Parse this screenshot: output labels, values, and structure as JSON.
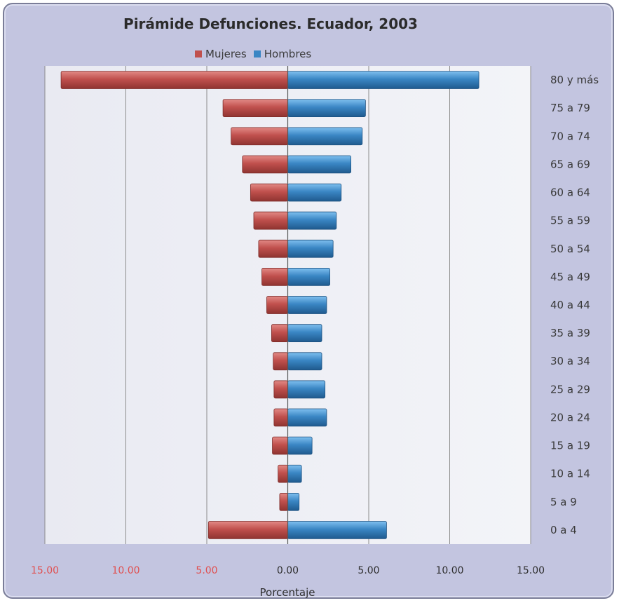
{
  "chart_data": {
    "type": "bar",
    "orientation": "horizontal",
    "title": "Pirámide Defunciones. Ecuador, 2003",
    "xlabel": "Porcentaje",
    "ylabel": "",
    "xlim": [
      -15,
      15
    ],
    "x_ticks": [
      {
        "value": -15,
        "label": "15.00",
        "color": "#e05050"
      },
      {
        "value": -10,
        "label": "10.00",
        "color": "#e05050"
      },
      {
        "value": -5,
        "label": "5.00",
        "color": "#e05050"
      },
      {
        "value": 0,
        "label": "0.00",
        "color": "#2f2f2f"
      },
      {
        "value": 5,
        "label": "5.00",
        "color": "#2f2f2f"
      },
      {
        "value": 10,
        "label": "10.00",
        "color": "#2f2f2f"
      },
      {
        "value": 15,
        "label": "15.00",
        "color": "#2f2f2f"
      }
    ],
    "grid": true,
    "legend_position": "top",
    "categories": [
      "80 y más",
      "75 a 79",
      "70 a 74",
      "65 a 69",
      "60 a 64",
      "55 a 59",
      "50 a 54",
      "45 a 49",
      "40 a 44",
      "35 a 39",
      "30 a 34",
      "25 a 29",
      "20 a 24",
      "15 a 19",
      "10 a 14",
      "5 a 9",
      "0 a 4"
    ],
    "series": [
      {
        "name": "Mujeres",
        "color": "#c0504d",
        "values": [
          14.0,
          4.0,
          3.5,
          2.8,
          2.3,
          2.1,
          1.8,
          1.6,
          1.3,
          1.0,
          0.9,
          0.85,
          0.85,
          0.95,
          0.6,
          0.5,
          4.9
        ]
      },
      {
        "name": "Hombres",
        "color": "#3a86c4",
        "values": [
          11.8,
          4.8,
          4.6,
          3.9,
          3.3,
          3.0,
          2.8,
          2.6,
          2.4,
          2.1,
          2.1,
          2.3,
          2.4,
          1.5,
          0.85,
          0.7,
          6.1
        ]
      }
    ]
  }
}
